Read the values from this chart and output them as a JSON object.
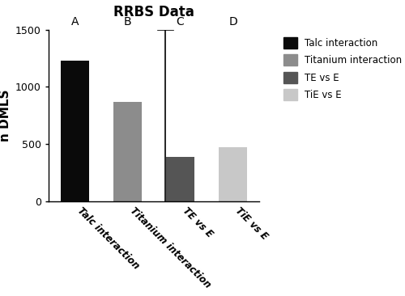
{
  "title": "RRBS Data",
  "ylabel": "n DMLS",
  "categories": [
    "Talc interaction",
    "Titanium interaction",
    "TE vs E",
    "TiE vs E"
  ],
  "values": [
    1230,
    870,
    390,
    470
  ],
  "bar_colors": [
    "#0a0a0a",
    "#8c8c8c",
    "#555555",
    "#c8c8c8"
  ],
  "legend_labels": [
    "Talc interaction",
    "Titanium interaction",
    "TE vs E",
    "TiE vs E"
  ],
  "legend_colors": [
    "#0a0a0a",
    "#8c8c8c",
    "#555555",
    "#c8c8c8"
  ],
  "letter_labels": [
    "A",
    "B",
    "C",
    "D"
  ],
  "ylim": [
    0,
    1500
  ],
  "yticks": [
    0,
    500,
    1000,
    1500
  ],
  "bar_width": 0.55,
  "figsize": [
    5.0,
    3.66
  ],
  "dpi": 100
}
